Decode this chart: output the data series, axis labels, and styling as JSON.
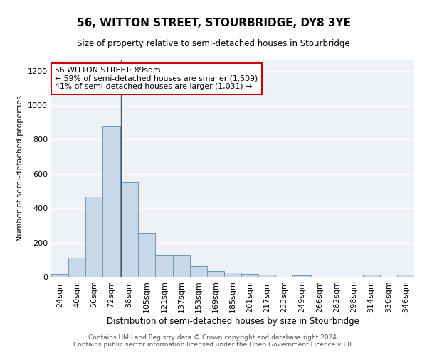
{
  "title": "56, WITTON STREET, STOURBRIDGE, DY8 3YE",
  "subtitle": "Size of property relative to semi-detached houses in Stourbridge",
  "xlabel": "Distribution of semi-detached houses by size in Stourbridge",
  "ylabel": "Number of semi-detached properties",
  "bin_labels": [
    "24sqm",
    "40sqm",
    "56sqm",
    "72sqm",
    "88sqm",
    "105sqm",
    "121sqm",
    "137sqm",
    "153sqm",
    "169sqm",
    "185sqm",
    "201sqm",
    "217sqm",
    "233sqm",
    "249sqm",
    "266sqm",
    "282sqm",
    "298sqm",
    "314sqm",
    "330sqm",
    "346sqm"
  ],
  "bin_edges": [
    24,
    40,
    56,
    72,
    88,
    105,
    121,
    137,
    153,
    169,
    185,
    201,
    217,
    233,
    249,
    266,
    282,
    298,
    314,
    330,
    346
  ],
  "bar_heights": [
    18,
    110,
    465,
    875,
    548,
    258,
    130,
    130,
    62,
    35,
    25,
    18,
    12,
    0,
    10,
    0,
    0,
    0,
    12,
    0,
    12
  ],
  "bar_color": "#c8d8e8",
  "bar_edge_color": "#6699bb",
  "property_line_x": 89,
  "annotation_title": "56 WITTON STREET: 89sqm",
  "annotation_line1": "← 59% of semi-detached houses are smaller (1,509)",
  "annotation_line2": "41% of semi-detached houses are larger (1,031) →",
  "annotation_box_color": "#ffffff",
  "annotation_box_edge": "#cc0000",
  "ylim": [
    0,
    1260
  ],
  "yticks": [
    0,
    200,
    400,
    600,
    800,
    1000,
    1200
  ],
  "background_color": "#eef2f7",
  "footer_line1": "Contains HM Land Registry data © Crown copyright and database right 2024.",
  "footer_line2": "Contains public sector information licensed under the Open Government Licence v3.0."
}
